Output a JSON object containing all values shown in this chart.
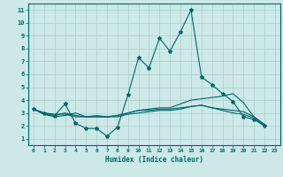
{
  "title": "",
  "xlabel": "Humidex (Indice chaleur)",
  "ylabel": "",
  "background_color": "#cce8e8",
  "grid_color": "#aacccc",
  "line_color": "#006666",
  "xlim": [
    -0.5,
    23.5
  ],
  "ylim": [
    0.5,
    11.5
  ],
  "xticks": [
    0,
    1,
    2,
    3,
    4,
    5,
    6,
    7,
    8,
    9,
    10,
    11,
    12,
    13,
    14,
    15,
    16,
    17,
    18,
    19,
    20,
    21,
    22,
    23
  ],
  "yticks": [
    1,
    2,
    3,
    4,
    5,
    6,
    7,
    8,
    9,
    10,
    11
  ],
  "series": [
    [
      3.3,
      3.0,
      2.8,
      3.7,
      2.2,
      1.8,
      1.8,
      1.2,
      1.9,
      4.4,
      7.3,
      6.5,
      8.8,
      7.8,
      9.3,
      11.0,
      5.8,
      5.2,
      4.5,
      3.9,
      2.7,
      2.5,
      2.0
    ],
    [
      3.3,
      2.9,
      2.7,
      2.8,
      3.0,
      2.7,
      2.8,
      2.7,
      2.8,
      3.0,
      3.2,
      3.3,
      3.4,
      3.4,
      3.7,
      4.0,
      4.1,
      4.2,
      4.3,
      4.5,
      3.8,
      2.7,
      2.1
    ],
    [
      3.3,
      2.9,
      2.8,
      3.0,
      2.8,
      2.7,
      2.7,
      2.7,
      2.7,
      2.9,
      3.0,
      3.1,
      3.2,
      3.2,
      3.3,
      3.5,
      3.6,
      3.4,
      3.3,
      3.2,
      3.1,
      2.7,
      2.1
    ],
    [
      3.3,
      3.0,
      2.9,
      2.9,
      2.7,
      2.7,
      2.7,
      2.7,
      2.8,
      3.0,
      3.2,
      3.2,
      3.3,
      3.3,
      3.4,
      3.5,
      3.6,
      3.4,
      3.2,
      3.0,
      2.9,
      2.6,
      2.0
    ]
  ],
  "x_values": [
    0,
    1,
    2,
    3,
    4,
    5,
    6,
    7,
    8,
    9,
    10,
    11,
    12,
    13,
    14,
    15,
    16,
    17,
    18,
    19,
    20,
    21,
    22
  ]
}
